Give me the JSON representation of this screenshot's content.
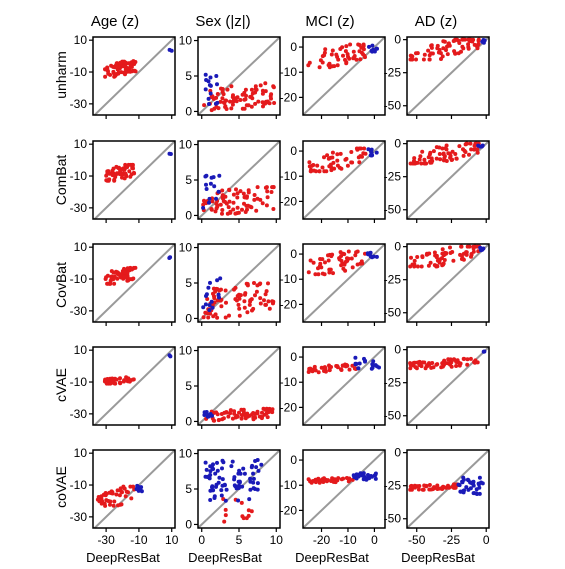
{
  "chart_data": {
    "type": "scatter",
    "layout": "grid of small multiples, 5 rows x 4 columns",
    "columns": [
      "Age (z)",
      "Sex (|z|)",
      "MCI (z)",
      "AD (z)"
    ],
    "rows": [
      "unharm",
      "ComBat",
      "CovBat",
      "cVAE",
      "coVAE"
    ],
    "xlabel": "DeepResBat",
    "reference_line": "identity y = x",
    "colors": {
      "red": "#e41a1c",
      "blue": "#1a1ab8",
      "diagonal": "#9a9a9a"
    },
    "axes": [
      {
        "column": "Age (z)",
        "xlim": [
          -38,
          12
        ],
        "ylim": [
          -37,
          12
        ],
        "xticks": [
          -30,
          -10,
          10
        ],
        "yticks": [
          -30,
          -10,
          10
        ]
      },
      {
        "column": "Sex (|z|)",
        "xlim": [
          -0.5,
          10.5
        ],
        "ylim": [
          -0.5,
          10.5
        ],
        "xticks": [
          0,
          5,
          10
        ],
        "yticks": [
          0,
          5,
          10
        ]
      },
      {
        "column": "MCI (z)",
        "xlim": [
          -27,
          4
        ],
        "ylim": [
          -27,
          4
        ],
        "xticks": [
          -20,
          -10,
          0
        ],
        "yticks": [
          -20,
          -10,
          0
        ]
      },
      {
        "column": "AD (z)",
        "xlim": [
          -57,
          2
        ],
        "ylim": [
          -57,
          2
        ],
        "xticks": [
          -50,
          -25,
          0
        ],
        "yticks": [
          -50,
          -25,
          0
        ]
      }
    ],
    "panels": [
      {
        "row": "unharm",
        "column": "Age (z)",
        "red_points": 62,
        "red_x": [
          -31,
          -12
        ],
        "red_y": [
          -13,
          -3
        ],
        "red_slope": 0.3,
        "blue_x": [
          8,
          10
        ],
        "blue_y": [
          3,
          4
        ],
        "blue_points": 2
      },
      {
        "row": "unharm",
        "column": "Sex (|z|)",
        "red_points": 80,
        "red_x": [
          0.2,
          9.8
        ],
        "red_y": [
          0.1,
          4
        ],
        "red_slope": 0.12,
        "blue_x": [
          0.1,
          2.5
        ],
        "blue_y": [
          0.5,
          6
        ],
        "blue_points": 14
      },
      {
        "row": "unharm",
        "column": "MCI (z)",
        "red_points": 50,
        "red_x": [
          -25,
          -3
        ],
        "red_y": [
          -8,
          1
        ],
        "red_slope": 0.3,
        "blue_x": [
          -3,
          1
        ],
        "blue_y": [
          -2,
          1
        ],
        "blue_points": 8
      },
      {
        "row": "unharm",
        "column": "AD (z)",
        "red_points": 70,
        "red_x": [
          -55,
          -5
        ],
        "red_y": [
          -15,
          0
        ],
        "red_slope": 0.3,
        "blue_x": [
          -6,
          -1
        ],
        "blue_y": [
          -3,
          0
        ],
        "blue_points": 4
      },
      {
        "row": "ComBat",
        "column": "Age (z)",
        "red_points": 62,
        "red_x": [
          -31,
          -12
        ],
        "red_y": [
          -13,
          -3
        ],
        "red_slope": 0.3,
        "blue_x": [
          8,
          10
        ],
        "blue_y": [
          3,
          4
        ],
        "blue_points": 2
      },
      {
        "row": "ComBat",
        "column": "Sex (|z|)",
        "red_points": 80,
        "red_x": [
          0.2,
          9.8
        ],
        "red_y": [
          0.1,
          4
        ],
        "red_slope": 0.12,
        "blue_x": [
          0.1,
          2.5
        ],
        "blue_y": [
          0.5,
          6
        ],
        "blue_points": 14
      },
      {
        "row": "ComBat",
        "column": "MCI (z)",
        "red_points": 50,
        "red_x": [
          -25,
          -3
        ],
        "red_y": [
          -8,
          1
        ],
        "red_slope": 0.3,
        "blue_x": [
          -3,
          1
        ],
        "blue_y": [
          -2,
          1
        ],
        "blue_points": 8
      },
      {
        "row": "ComBat",
        "column": "AD (z)",
        "red_points": 70,
        "red_x": [
          -55,
          -5
        ],
        "red_y": [
          -15,
          0
        ],
        "red_slope": 0.3,
        "blue_x": [
          -6,
          -1
        ],
        "blue_y": [
          -3,
          0
        ],
        "blue_points": 4
      },
      {
        "row": "CovBat",
        "column": "Age (z)",
        "red_points": 62,
        "red_x": [
          -31,
          -12
        ],
        "red_y": [
          -13,
          -3
        ],
        "red_slope": 0.3,
        "blue_x": [
          8,
          10
        ],
        "blue_y": [
          3,
          4
        ],
        "blue_points": 2
      },
      {
        "row": "CovBat",
        "column": "Sex (|z|)",
        "red_points": 80,
        "red_x": [
          0.2,
          9.8
        ],
        "red_y": [
          0.1,
          5
        ],
        "red_slope": 0.15,
        "blue_x": [
          0.1,
          2.5
        ],
        "blue_y": [
          0.5,
          6
        ],
        "blue_points": 14
      },
      {
        "row": "CovBat",
        "column": "MCI (z)",
        "red_points": 50,
        "red_x": [
          -25,
          -3
        ],
        "red_y": [
          -8,
          1
        ],
        "red_slope": 0.3,
        "blue_x": [
          -3,
          1
        ],
        "blue_y": [
          -2,
          1
        ],
        "blue_points": 8
      },
      {
        "row": "CovBat",
        "column": "AD (z)",
        "red_points": 70,
        "red_x": [
          -55,
          -5
        ],
        "red_y": [
          -15,
          0
        ],
        "red_slope": 0.3,
        "blue_x": [
          -6,
          -1
        ],
        "blue_y": [
          -3,
          0
        ],
        "blue_points": 4
      },
      {
        "row": "cVAE",
        "column": "Age (z)",
        "red_points": 55,
        "red_x": [
          -31,
          -12
        ],
        "red_y": [
          -11,
          -7
        ],
        "red_slope": 0.1,
        "blue_x": [
          8,
          10
        ],
        "blue_y": [
          5,
          7
        ],
        "blue_points": 2
      },
      {
        "row": "cVAE",
        "column": "Sex (|z|)",
        "red_points": 70,
        "red_x": [
          0.5,
          9.8
        ],
        "red_y": [
          0.1,
          1.8
        ],
        "red_slope": 0.05,
        "blue_x": [
          0.1,
          1.5
        ],
        "blue_y": [
          0.5,
          1.5
        ],
        "blue_points": 8
      },
      {
        "row": "cVAE",
        "column": "MCI (z)",
        "red_points": 40,
        "red_x": [
          -25,
          -7
        ],
        "red_y": [
          -6,
          -3
        ],
        "red_slope": 0.1,
        "blue_x": [
          -8,
          2
        ],
        "blue_y": [
          -5,
          1
        ],
        "blue_points": 18
      },
      {
        "row": "cVAE",
        "column": "AD (z)",
        "red_points": 60,
        "red_x": [
          -55,
          -5
        ],
        "red_y": [
          -14,
          -7
        ],
        "red_slope": 0.1,
        "blue_x": [
          -3,
          -1
        ],
        "blue_y": [
          -2,
          0
        ],
        "blue_points": 2
      },
      {
        "row": "coVAE",
        "column": "Age (z)",
        "red_points": 45,
        "red_x": [
          -35,
          -12
        ],
        "red_y": [
          -24,
          -11
        ],
        "red_slope": 0.4,
        "blue_x": [
          -12,
          -8
        ],
        "blue_y": [
          -15,
          -10
        ],
        "blue_points": 10
      },
      {
        "row": "coVAE",
        "column": "Sex (|z|)",
        "red_points": 12,
        "red_x": [
          1,
          7
        ],
        "red_y": [
          0.2,
          4
        ],
        "red_slope": 0.1,
        "blue_x": [
          0.5,
          8
        ],
        "blue_y": [
          3,
          9.5
        ],
        "blue_points": 75
      },
      {
        "row": "coVAE",
        "column": "MCI (z)",
        "red_points": 35,
        "red_x": [
          -25,
          -8
        ],
        "red_y": [
          -9,
          -7
        ],
        "red_slope": 0.05,
        "blue_x": [
          -8,
          1
        ],
        "blue_y": [
          -8,
          -5
        ],
        "blue_points": 30
      },
      {
        "row": "coVAE",
        "column": "AD (z)",
        "red_points": 45,
        "red_x": [
          -55,
          -20
        ],
        "red_y": [
          -28,
          -24
        ],
        "red_slope": 0.05,
        "blue_x": [
          -20,
          -2
        ],
        "blue_y": [
          -32,
          -18
        ],
        "blue_points": 35
      }
    ]
  }
}
